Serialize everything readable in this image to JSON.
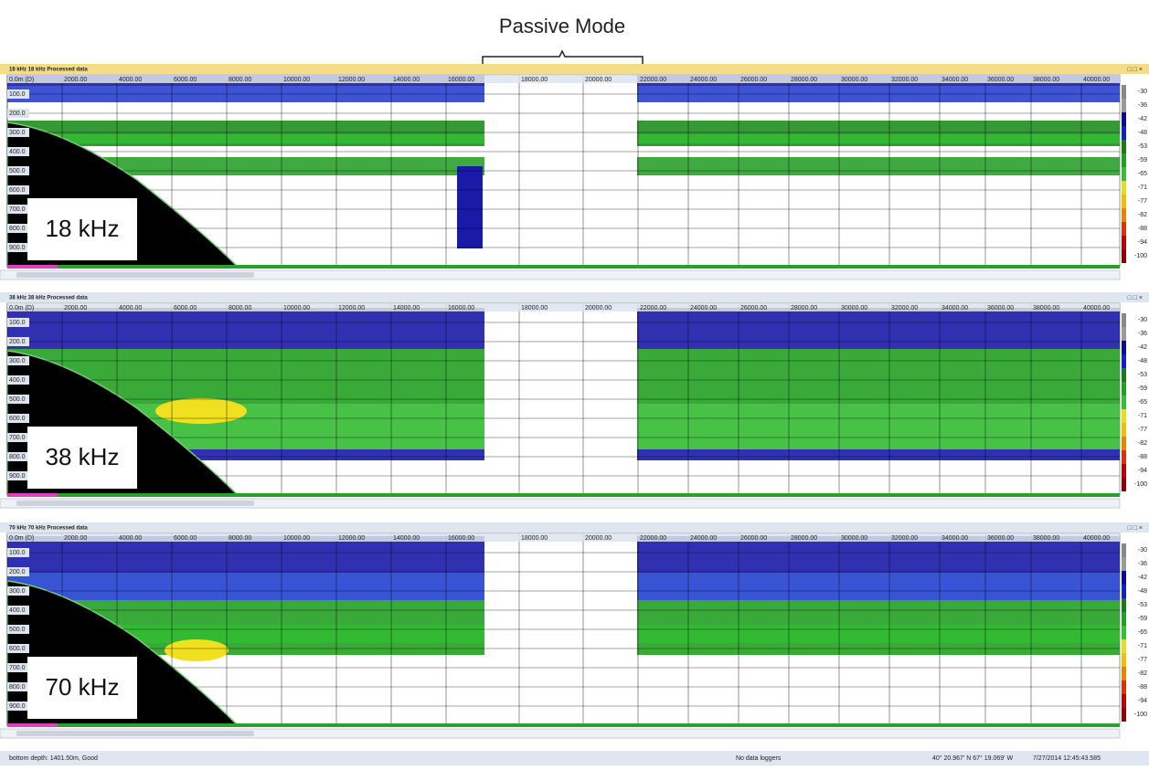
{
  "header": {
    "title": "Passive Mode"
  },
  "panels": [
    {
      "title": "18 kHz 18 kHz Processed data",
      "label": "18 kHz"
    },
    {
      "title": "38 kHz 38 kHz Processed data",
      "label": "38 kHz"
    },
    {
      "title": "70 kHz 70 kHz Processed data",
      "label": "70 kHz"
    }
  ],
  "x_labels": [
    "0.0m (D)",
    "2000.00",
    "4000.00",
    "6000.00",
    "8000.00",
    "10000.00",
    "12000.00",
    "14000.00",
    "16000.00",
    "18000.00",
    "20000.00",
    "22000.00",
    "24000.00",
    "26000.00",
    "28000.00",
    "30000.00",
    "32000.00",
    "34000.00",
    "36000.00",
    "38000.00",
    "40000.00"
  ],
  "depth_labels": [
    "100.0",
    "200.0",
    "300.0",
    "400.0",
    "500.0",
    "600.0",
    "700.0",
    "800.0",
    "900.0"
  ],
  "scale_labels": [
    "-30",
    "-36",
    "-42",
    "-48",
    "-53",
    "-59",
    "-65",
    "-71",
    "-77",
    "-82",
    "-88",
    "-94",
    "-100"
  ],
  "status": {
    "bottom": "bottom depth: 1401.50m, Good",
    "loggers": "No data loggers",
    "position": "40° 20.967' N 67° 19.069' W",
    "time": "7/27/2014 12:45:43.585"
  }
}
